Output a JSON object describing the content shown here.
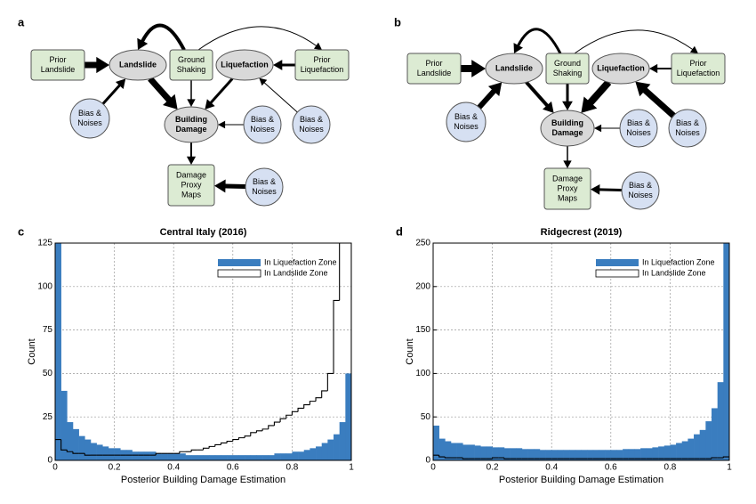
{
  "diagrams": [
    {
      "label": "a",
      "nodes": [
        {
          "lines": [
            "Prior",
            "Landslide"
          ],
          "shape": "rect"
        },
        {
          "lines": [
            "Landslide"
          ],
          "shape": "ellipse",
          "color": "#cc0000"
        },
        {
          "lines": [
            "Ground",
            "Shaking"
          ],
          "shape": "rect"
        },
        {
          "lines": [
            "Liquefaction"
          ],
          "shape": "ellipse",
          "color": "#cc0000"
        },
        {
          "lines": [
            "Prior",
            "Liquefaction"
          ],
          "shape": "rect"
        },
        {
          "lines": [
            "Bias &",
            "Noises"
          ],
          "shape": "circle"
        },
        {
          "lines": [
            "Building",
            "Damage"
          ],
          "shape": "ellipse",
          "color": "#cc0000"
        },
        {
          "lines": [
            "Bias &",
            "Noises"
          ],
          "shape": "circle"
        },
        {
          "lines": [
            "Bias &",
            "Noises"
          ],
          "shape": "circle"
        },
        {
          "lines": [
            "Damage",
            "Proxy",
            "Maps"
          ],
          "shape": "rect"
        },
        {
          "lines": [
            "Bias &",
            "Noises"
          ],
          "shape": "circle"
        }
      ]
    },
    {
      "label": "b",
      "nodes": [
        {
          "lines": [
            "Prior",
            "Landslide"
          ],
          "shape": "rect"
        },
        {
          "lines": [
            "Landslide"
          ],
          "shape": "ellipse",
          "color": "#cc0000"
        },
        {
          "lines": [
            "Ground",
            "Shaking"
          ],
          "shape": "rect"
        },
        {
          "lines": [
            "Liquefaction"
          ],
          "shape": "ellipse",
          "color": "#cc0000"
        },
        {
          "lines": [
            "Prior",
            "Liquefaction"
          ],
          "shape": "rect"
        },
        {
          "lines": [
            "Bias &",
            "Noises"
          ],
          "shape": "circle"
        },
        {
          "lines": [
            "Building",
            "Damage"
          ],
          "shape": "ellipse",
          "color": "#cc0000"
        },
        {
          "lines": [
            "Bias &",
            "Noises"
          ],
          "shape": "circle"
        },
        {
          "lines": [
            "Bias &",
            "Noises"
          ],
          "shape": "circle"
        },
        {
          "lines": [
            "Damage",
            "Proxy",
            "Maps"
          ],
          "shape": "rect"
        },
        {
          "lines": [
            "Bias &",
            "Noises"
          ],
          "shape": "circle"
        }
      ]
    }
  ],
  "chart_data": [
    {
      "type": "histogram",
      "label": "c",
      "title": "Central Italy (2016)",
      "xlabel": "Posterior Building Damage Estimation",
      "ylabel": "Count",
      "bins": [
        0,
        0.02,
        0.04,
        0.06,
        0.08,
        0.1,
        0.12,
        0.14,
        0.16,
        0.18,
        0.2,
        0.22,
        0.24,
        0.26,
        0.28,
        0.3,
        0.32,
        0.34,
        0.36,
        0.38,
        0.4,
        0.42,
        0.44,
        0.46,
        0.48,
        0.5,
        0.52,
        0.54,
        0.56,
        0.58,
        0.6,
        0.62,
        0.64,
        0.66,
        0.68,
        0.7,
        0.72,
        0.74,
        0.76,
        0.78,
        0.8,
        0.82,
        0.84,
        0.86,
        0.88,
        0.9,
        0.92,
        0.94,
        0.96,
        0.98,
        1
      ],
      "xlim": [
        0,
        1
      ],
      "ylim": [
        0,
        125
      ],
      "xticks": [
        0,
        0.2,
        0.4,
        0.6,
        0.8,
        1
      ],
      "yticks": [
        0,
        25,
        50,
        75,
        100,
        125
      ],
      "grid": true,
      "legend": "upper right",
      "series": [
        {
          "name": "In Liquefaction Zone",
          "style": "filled",
          "color": "#3a7dbf",
          "values": [
            125,
            40,
            22,
            18,
            14,
            12,
            10,
            9,
            8,
            7,
            7,
            6,
            6,
            5,
            5,
            5,
            5,
            4,
            4,
            4,
            4,
            4,
            3,
            3,
            3,
            3,
            3,
            3,
            3,
            3,
            3,
            3,
            3,
            3,
            3,
            3,
            3,
            4,
            4,
            4,
            5,
            5,
            6,
            7,
            8,
            10,
            12,
            15,
            22,
            50
          ]
        },
        {
          "name": "In Landslide Zone",
          "style": "step",
          "color": "#000000",
          "values": [
            12,
            6,
            5,
            4,
            4,
            3,
            3,
            3,
            3,
            3,
            3,
            3,
            3,
            3,
            3,
            3,
            3,
            4,
            4,
            4,
            4,
            5,
            5,
            6,
            6,
            7,
            8,
            9,
            10,
            11,
            12,
            13,
            14,
            16,
            17,
            18,
            20,
            22,
            24,
            26,
            28,
            30,
            32,
            34,
            36,
            40,
            50,
            92,
            125,
            125
          ]
        }
      ]
    },
    {
      "type": "histogram",
      "label": "d",
      "title": "Ridgecrest (2019)",
      "xlabel": "Posterior Building Damage Estimation",
      "ylabel": "Count",
      "bins": [
        0,
        0.02,
        0.04,
        0.06,
        0.08,
        0.1,
        0.12,
        0.14,
        0.16,
        0.18,
        0.2,
        0.22,
        0.24,
        0.26,
        0.28,
        0.3,
        0.32,
        0.34,
        0.36,
        0.38,
        0.4,
        0.42,
        0.44,
        0.46,
        0.48,
        0.5,
        0.52,
        0.54,
        0.56,
        0.58,
        0.6,
        0.62,
        0.64,
        0.66,
        0.68,
        0.7,
        0.72,
        0.74,
        0.76,
        0.78,
        0.8,
        0.82,
        0.84,
        0.86,
        0.88,
        0.9,
        0.92,
        0.94,
        0.96,
        0.98,
        1
      ],
      "xlim": [
        0,
        1
      ],
      "ylim": [
        0,
        250
      ],
      "xticks": [
        0,
        0.2,
        0.4,
        0.6,
        0.8,
        1
      ],
      "yticks": [
        0,
        50,
        100,
        150,
        200,
        250
      ],
      "grid": true,
      "legend": "upper right",
      "series": [
        {
          "name": "In Liquefaction Zone",
          "style": "filled",
          "color": "#3a7dbf",
          "values": [
            40,
            25,
            22,
            20,
            20,
            18,
            18,
            17,
            16,
            16,
            15,
            15,
            14,
            14,
            14,
            13,
            13,
            13,
            12,
            12,
            12,
            12,
            12,
            12,
            12,
            12,
            12,
            12,
            12,
            12,
            12,
            12,
            13,
            13,
            13,
            14,
            14,
            15,
            16,
            17,
            18,
            20,
            22,
            25,
            30,
            35,
            45,
            60,
            90,
            250
          ]
        },
        {
          "name": "In Landslide Zone",
          "style": "step",
          "color": "#000000",
          "values": [
            6,
            4,
            3,
            3,
            3,
            2,
            2,
            2,
            2,
            2,
            3,
            3,
            2,
            2,
            2,
            2,
            2,
            2,
            2,
            2,
            2,
            2,
            2,
            2,
            2,
            2,
            2,
            2,
            2,
            2,
            2,
            2,
            2,
            2,
            2,
            2,
            2,
            2,
            2,
            2,
            2,
            2,
            2,
            2,
            2,
            2,
            2,
            3,
            3,
            4
          ]
        }
      ]
    }
  ]
}
